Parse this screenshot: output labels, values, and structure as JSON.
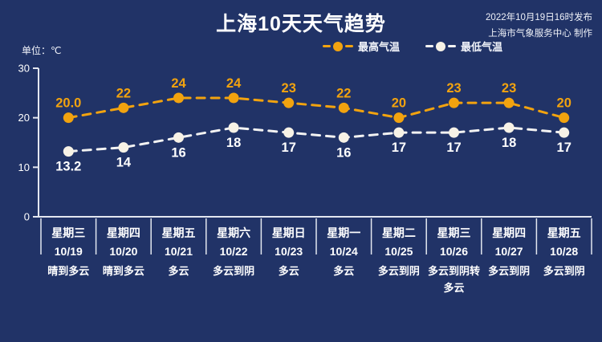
{
  "header": {
    "title": "上海10天天气趋势",
    "publish_line1": "2022年10月19日16时发布",
    "publish_line2": "上海市气象服务中心 制作"
  },
  "unit_label": "单位：℃",
  "legend": {
    "high_label": "最高气温",
    "low_label": "最低气温"
  },
  "colors": {
    "background": "#213367",
    "high": "#f2a30f",
    "low_dot": "#f7f2e6",
    "low_line": "#f2f2f2",
    "axis": "#e3e7f0",
    "text": "#ffffff"
  },
  "chart_data": {
    "type": "line",
    "title": "上海10天天气趋势",
    "ylabel": "单位：℃",
    "ylim": [
      0,
      30
    ],
    "yticks": [
      30,
      20,
      10,
      0
    ],
    "grid": false,
    "legend_position": "top",
    "line_style": "dashed",
    "categories": [
      {
        "weekday": "星期三",
        "date": "10/19",
        "weather": "晴到多云"
      },
      {
        "weekday": "星期四",
        "date": "10/20",
        "weather": "晴到多云"
      },
      {
        "weekday": "星期五",
        "date": "10/21",
        "weather": "多云"
      },
      {
        "weekday": "星期六",
        "date": "10/22",
        "weather": "多云到阴"
      },
      {
        "weekday": "星期日",
        "date": "10/23",
        "weather": "多云"
      },
      {
        "weekday": "星期一",
        "date": "10/24",
        "weather": "多云"
      },
      {
        "weekday": "星期二",
        "date": "10/25",
        "weather": "多云到阴"
      },
      {
        "weekday": "星期三",
        "date": "10/26",
        "weather": "多云到阴转多云"
      },
      {
        "weekday": "星期四",
        "date": "10/27",
        "weather": "多云到阴"
      },
      {
        "weekday": "星期五",
        "date": "10/28",
        "weather": "多云到阴"
      }
    ],
    "series": [
      {
        "name": "最高气温",
        "color": "#f2a30f",
        "label_color": "#f2a30f",
        "values": [
          20.0,
          22,
          24,
          24,
          23,
          22,
          20,
          23,
          23,
          20
        ],
        "labels": [
          "20.0",
          "22",
          "24",
          "24",
          "23",
          "22",
          "20",
          "23",
          "23",
          "20"
        ]
      },
      {
        "name": "最低气温",
        "color": "#f2f2f2",
        "dot_color": "#f7f2e6",
        "label_color": "#ffffff",
        "values": [
          13.2,
          14,
          16,
          18,
          17,
          16,
          17,
          17,
          18,
          17
        ],
        "labels": [
          "13.2",
          "14",
          "16",
          "18",
          "17",
          "16",
          "17",
          "17",
          "18",
          "17"
        ]
      }
    ]
  }
}
